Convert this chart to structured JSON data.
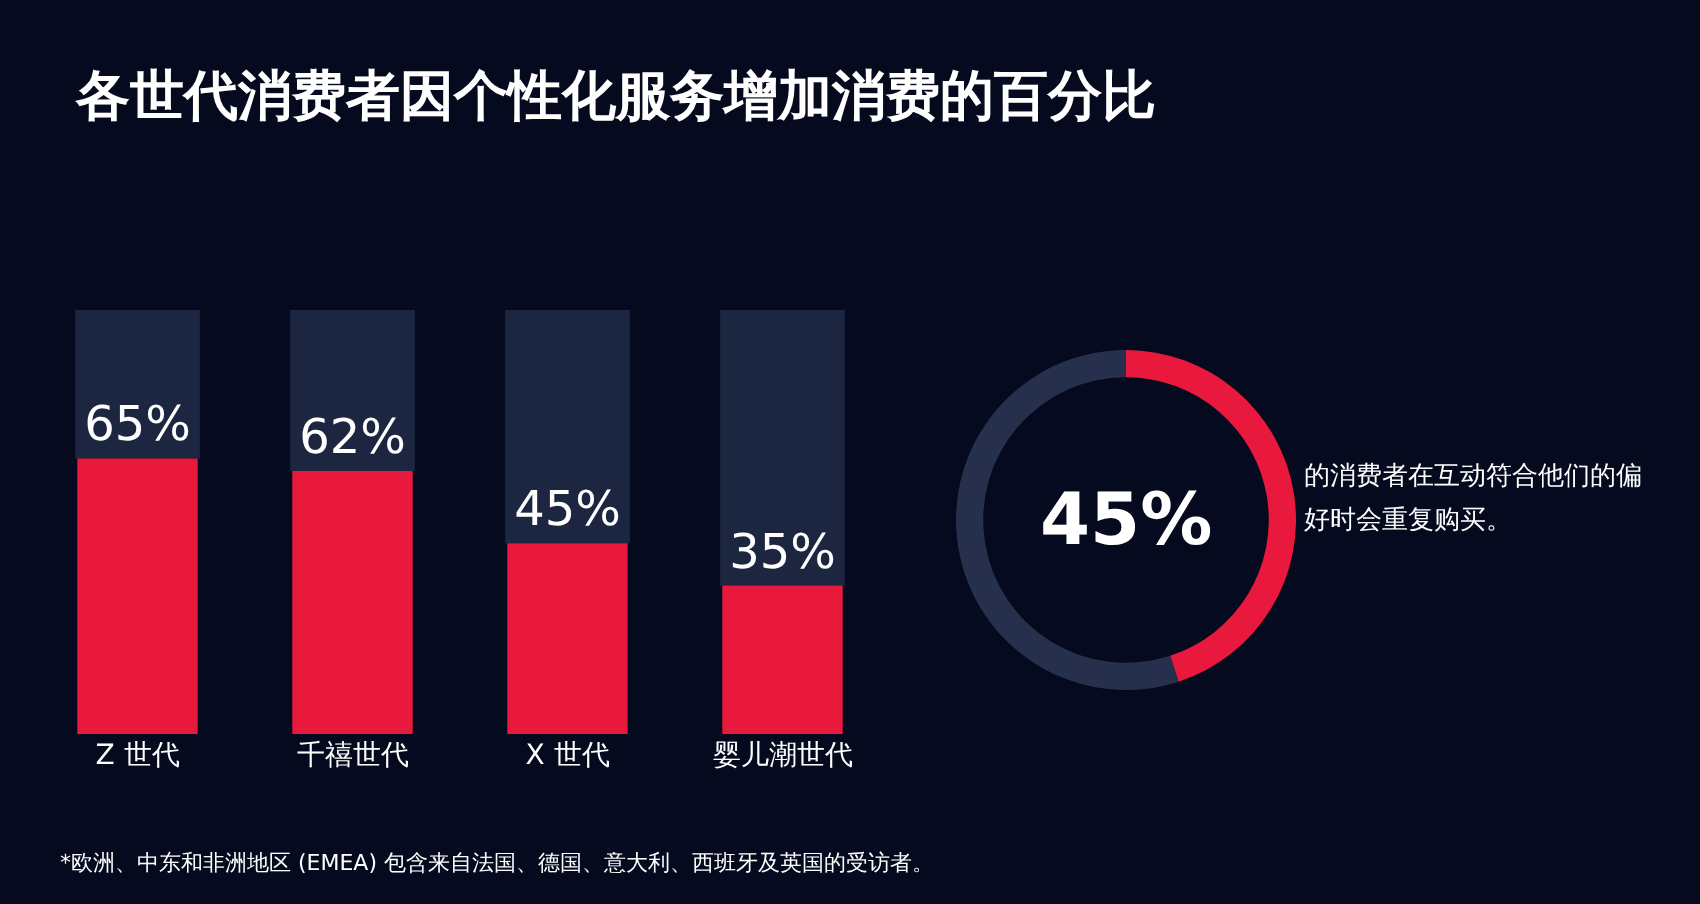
{
  "chart_data": [
    {
      "type": "bar",
      "title": "各世代消费者因个性化服务增加消费的百分比",
      "categories": [
        "Z 世代",
        "千禧世代",
        "X 世代",
        "婴儿潮世代"
      ],
      "values": [
        65,
        62,
        45,
        35
      ],
      "color": "#e8193c",
      "ylim": [
        0,
        100
      ],
      "tick_labels": "x",
      "value_labels": [
        "65%",
        "62%",
        "45%",
        "35%"
      ],
      "annotations": [
        "*欧洲、中东和非洲地区 (EMEA) 包含来自法国、德国、意大利、西班牙及英国的受访者。"
      ]
    },
    {
      "type": "donut",
      "categories": [
        null,
        null
      ],
      "values": [
        45,
        55
      ],
      "colors": [
        "#e8193c",
        "#26304d"
      ],
      "value_labels": [
        "45%",
        null
      ],
      "annotations": [
        "的消费者在互动符合他们的偏好时会重复购买。"
      ]
    }
  ]
}
